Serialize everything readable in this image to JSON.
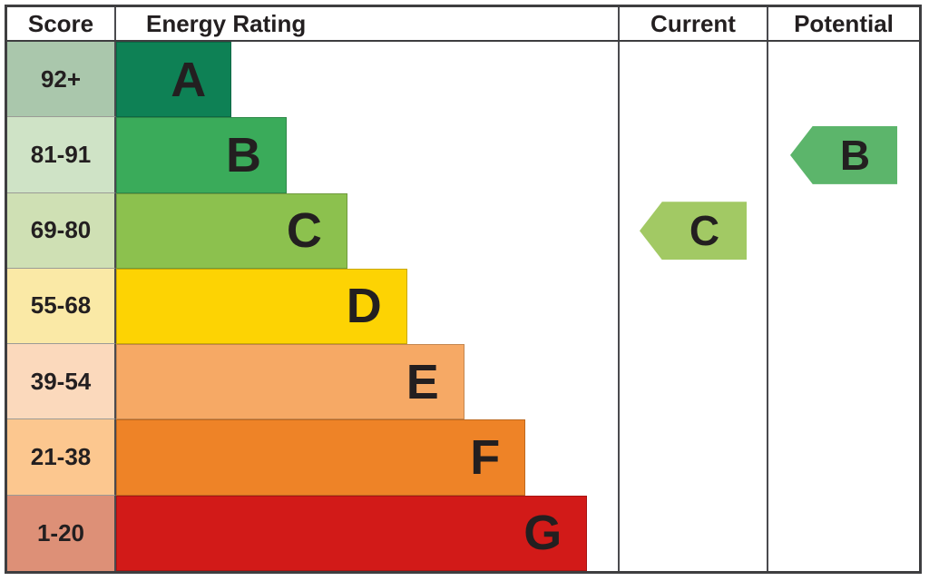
{
  "header": {
    "score_label": "Score",
    "rating_label": "Energy Rating",
    "current_label": "Current",
    "potential_label": "Potential"
  },
  "chart_data": {
    "type": "bar",
    "title": "Energy Rating",
    "xlabel": "",
    "ylabel": "Score",
    "orientation": "horizontal",
    "categories": [
      "A",
      "B",
      "C",
      "D",
      "E",
      "F",
      "G"
    ],
    "score_ranges": [
      "92+",
      "81-91",
      "69-80",
      "55-68",
      "39-54",
      "21-38",
      "1-20"
    ],
    "bands": [
      {
        "grade": "A",
        "score": "92+",
        "bar_color": "#0e8155",
        "score_cell_color": "#aac7ac",
        "width_pct": "23%"
      },
      {
        "grade": "B",
        "score": "81-91",
        "bar_color": "#3aab5a",
        "score_cell_color": "#cfe3c6",
        "width_pct": "34%"
      },
      {
        "grade": "C",
        "score": "69-80",
        "bar_color": "#8cc14e",
        "score_cell_color": "#cfe0b4",
        "width_pct": "46.1%"
      },
      {
        "grade": "D",
        "score": "55-68",
        "bar_color": "#fdd303",
        "score_cell_color": "#fae9a6",
        "width_pct": "58%"
      },
      {
        "grade": "E",
        "score": "39-54",
        "bar_color": "#f6a965",
        "score_cell_color": "#fbd9bc",
        "width_pct": "69.4%"
      },
      {
        "grade": "F",
        "score": "21-38",
        "bar_color": "#ee8327",
        "score_cell_color": "#fcc78f",
        "width_pct": "81.6%"
      },
      {
        "grade": "G",
        "score": "1-20",
        "bar_color": "#d21a18",
        "score_cell_color": "#dd9077",
        "width_pct": "93.9%"
      }
    ],
    "current": {
      "grade": "C",
      "band": "69-80",
      "arrow_color": "#a2c964"
    },
    "potential": {
      "grade": "B",
      "band": "81-91",
      "arrow_color": "#5cb56b"
    }
  }
}
